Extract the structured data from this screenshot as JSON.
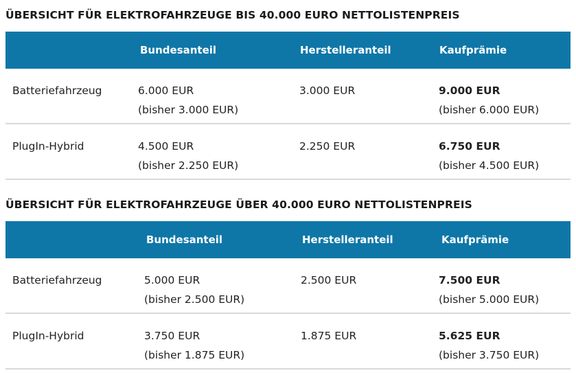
{
  "tables": [
    {
      "title": "ÜBERSICHT FÜR ELEKTROFAHRZEUGE BIS 40.000 EURO NETTOLISTENPREIS",
      "headers": [
        "",
        "Bundesanteil",
        "Herstelleranteil",
        "Kaufprämie"
      ],
      "rows": [
        {
          "type": "Batteriefahrzeug",
          "bund": "6.000 EUR",
          "bund_prev": "(bisher 3.000 EUR)",
          "hersteller": "3.000 EUR",
          "praemie": "9.000 EUR",
          "praemie_prev": "(bisher 6.000 EUR)"
        },
        {
          "type": "PlugIn-Hybrid",
          "bund": "4.500 EUR",
          "bund_prev": "(bisher 2.250 EUR)",
          "hersteller": "2.250 EUR",
          "praemie": "6.750 EUR",
          "praemie_prev": "(bisher 4.500 EUR)"
        }
      ]
    },
    {
      "title": "ÜBERSICHT FÜR ELEKTROFAHRZEUGE ÜBER 40.000 EURO NETTOLISTENPREIS",
      "headers": [
        "",
        "Bundesanteil",
        "Herstelleranteil",
        "Kaufprämie"
      ],
      "rows": [
        {
          "type": "Batteriefahrzeug",
          "bund": "5.000 EUR",
          "bund_prev": "(bisher 2.500 EUR)",
          "hersteller": "2.500 EUR",
          "praemie": "7.500 EUR",
          "praemie_prev": "(bisher 5.000 EUR)"
        },
        {
          "type": "PlugIn-Hybrid",
          "bund": "3.750 EUR",
          "bund_prev": "(bisher 1.875 EUR)",
          "hersteller": "1.875 EUR",
          "praemie": "5.625 EUR",
          "praemie_prev": "(bisher 3.750 EUR)"
        }
      ]
    }
  ],
  "colors": {
    "header_bg": "#0e77a8",
    "header_text": "#ffffff",
    "row_divider": "#d9d9d9"
  }
}
